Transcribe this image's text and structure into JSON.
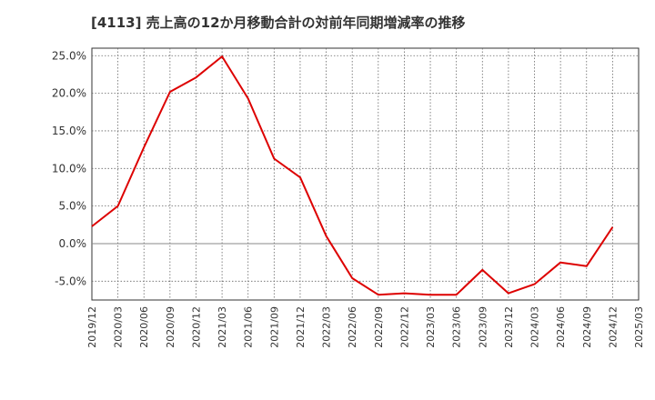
{
  "chart_data": {
    "type": "line",
    "title": "[4113]  売上高の12か月移動合計の対前年同期増減率の推移",
    "xlabel": "",
    "ylabel": "",
    "ylim": [
      -7.5,
      26
    ],
    "grid": true,
    "y_ticks": [
      {
        "value": 25,
        "label": "25.0%"
      },
      {
        "value": 20,
        "label": "20.0%"
      },
      {
        "value": 15,
        "label": "15.0%"
      },
      {
        "value": 10,
        "label": "10.0%"
      },
      {
        "value": 5,
        "label": "5.0%"
      },
      {
        "value": 0,
        "label": "0.0%"
      },
      {
        "value": -5,
        "label": "-5.0%"
      }
    ],
    "x_ticks": [
      "2019/12",
      "2020/03",
      "2020/06",
      "2020/09",
      "2020/12",
      "2021/03",
      "2021/06",
      "2021/09",
      "2021/12",
      "2022/03",
      "2022/06",
      "2022/09",
      "2022/12",
      "2023/03",
      "2023/06",
      "2023/09",
      "2023/12",
      "2024/03",
      "2024/06",
      "2024/09",
      "2024/12",
      "2025/03"
    ],
    "series": [
      {
        "name": "対前年同期増減率",
        "color": "#dd0000",
        "x": [
          "2019/12",
          "2020/03",
          "2020/06",
          "2020/09",
          "2020/12",
          "2021/03",
          "2021/06",
          "2021/09",
          "2021/12",
          "2022/03",
          "2022/06",
          "2022/09",
          "2022/12",
          "2023/03",
          "2023/06",
          "2023/09",
          "2023/12",
          "2024/03",
          "2024/06",
          "2024/09",
          "2024/12"
        ],
        "values": [
          2.3,
          5.0,
          12.8,
          20.2,
          22.1,
          24.9,
          19.3,
          11.3,
          8.8,
          1.0,
          -4.6,
          -6.8,
          -6.6,
          -6.8,
          -6.8,
          -3.5,
          -6.6,
          -5.4,
          -2.5,
          -3.0,
          2.2
        ]
      }
    ]
  }
}
